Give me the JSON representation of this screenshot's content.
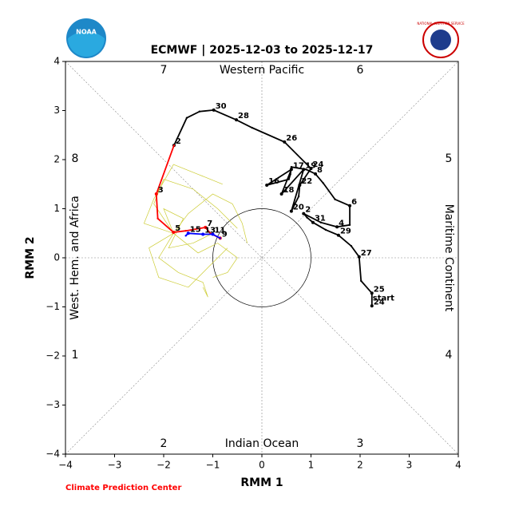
{
  "chart_data": {
    "type": "line",
    "title": "ECMWF | 2025-12-03 to 2025-12-17",
    "x_label": "RMM 1",
    "y_label": "RMM 2",
    "credit": "Climate Prediction Center",
    "logo_left": "NOAA",
    "logo_right": "NATIONAL WEATHER SERVICE",
    "start_label": "start",
    "phases": [
      "1",
      "2",
      "3",
      "4",
      "5",
      "6",
      "7",
      "8"
    ],
    "regions": {
      "top": "Western Pacific",
      "bottom": "Indian Ocean",
      "left": "West. Hem. and Africa",
      "right": "Maritime Continent"
    },
    "xlim": [
      -4,
      4
    ],
    "ylim": [
      -4,
      4
    ],
    "xticks": [
      {
        "value": -4,
        "label": "−4"
      },
      {
        "value": -3,
        "label": "−3"
      },
      {
        "value": -2,
        "label": "−2"
      },
      {
        "value": -1,
        "label": "−1"
      },
      0,
      1,
      2,
      3,
      4
    ],
    "yticks": [
      {
        "value": -4,
        "label": "−4"
      },
      {
        "value": -3,
        "label": "−3"
      },
      {
        "value": -2,
        "label": "−2"
      },
      {
        "value": -1,
        "label": "−1"
      },
      0,
      1,
      2,
      3,
      4
    ],
    "ensemble": [
      {
        "color": "#cccc33",
        "x": [
          -1.8,
          -2.2,
          -2.0,
          -1.4,
          -0.9,
          -0.5
        ],
        "y": [
          0.5,
          1.1,
          1.6,
          1.4,
          1.0,
          0.6
        ]
      },
      {
        "color": "#cccc33",
        "x": [
          -1.8,
          -2.3,
          -2.1,
          -1.5,
          -1.1,
          -0.7
        ],
        "y": [
          0.5,
          0.2,
          -0.4,
          -0.6,
          -0.2,
          0.2
        ]
      },
      {
        "color": "#cccc33",
        "x": [
          -1.8,
          -1.5,
          -1.0,
          -0.6,
          -0.4,
          -0.3
        ],
        "y": [
          0.5,
          0.9,
          1.3,
          1.1,
          0.7,
          0.3
        ]
      },
      {
        "color": "#cccc33",
        "x": [
          -1.8,
          -2.1,
          -1.7,
          -1.2,
          -1.1,
          -1.2
        ],
        "y": [
          0.5,
          0.0,
          -0.3,
          -0.5,
          -0.8,
          -0.6
        ]
      },
      {
        "color": "#cccc33",
        "x": [
          -1.8,
          -2.4,
          -2.2,
          -1.8,
          -1.3,
          -0.8
        ],
        "y": [
          0.5,
          0.7,
          1.2,
          1.9,
          1.7,
          1.5
        ]
      },
      {
        "color": "#cccc33",
        "x": [
          -1.8,
          -1.3,
          -0.9,
          -0.5,
          -0.7,
          -1.0
        ],
        "y": [
          0.5,
          0.1,
          0.3,
          0.0,
          -0.3,
          -0.4
        ]
      },
      {
        "color": "#cccc33",
        "x": [
          -1.8,
          -2.0,
          -1.6,
          -1.9,
          -1.4,
          -1.0
        ],
        "y": [
          0.5,
          1.0,
          0.8,
          0.2,
          0.3,
          0.5
        ]
      }
    ],
    "series": [
      {
        "color": "#000000",
        "x": [
          2.24,
          2.24,
          2.02,
          1.98,
          1.82,
          1.56,
          1.3,
          1.04,
          0.92,
          0.85,
          1.2,
          1.53,
          1.79,
          1.79,
          1.49,
          1.25,
          1.09,
          0.9,
          0.6,
          0.58,
          0.55,
          0.1,
          0.6,
          0.4,
          0.85,
          0.6,
          0.75,
          0.77,
          1.0,
          0.46,
          -0.2,
          -0.52,
          -0.98,
          -1.27,
          -1.53,
          -1.79
        ],
        "y": [
          -0.98,
          -0.72,
          -0.47,
          0.02,
          0.24,
          0.46,
          0.57,
          0.72,
          0.82,
          0.9,
          0.72,
          0.63,
          0.67,
          1.06,
          1.19,
          1.52,
          1.71,
          1.8,
          1.85,
          1.7,
          1.6,
          1.48,
          1.8,
          1.3,
          1.8,
          0.95,
          1.25,
          1.48,
          1.82,
          2.36,
          2.65,
          2.81,
          3.01,
          2.98,
          2.85,
          2.29
        ],
        "labels": [
          "24",
          "25",
          null,
          "27",
          null,
          "29",
          null,
          "31",
          null,
          "2",
          null,
          "4",
          null,
          "6",
          null,
          null,
          "8",
          null,
          null,
          null,
          null,
          "16",
          "17",
          "18",
          "19",
          "20",
          null,
          "22",
          "24",
          "26",
          null,
          "28",
          "30",
          null,
          null,
          "2"
        ]
      },
      {
        "color": "#ff0000",
        "x": [
          -1.79,
          -2.15,
          -2.12,
          -1.8,
          -1.55,
          -1.15,
          -1.05,
          -0.85
        ],
        "y": [
          2.29,
          1.3,
          0.8,
          0.52,
          0.55,
          0.62,
          0.5,
          0.4
        ],
        "labels": [
          null,
          "3",
          null,
          "5",
          null,
          "7",
          null,
          "9"
        ]
      },
      {
        "color": "#0000ff",
        "x": [
          -0.85,
          -1.0,
          -1.2,
          -1.5,
          -1.55
        ],
        "y": [
          0.4,
          0.48,
          0.48,
          0.5,
          0.45
        ],
        "labels": [
          null,
          "11",
          "13",
          "15",
          null
        ]
      }
    ]
  }
}
